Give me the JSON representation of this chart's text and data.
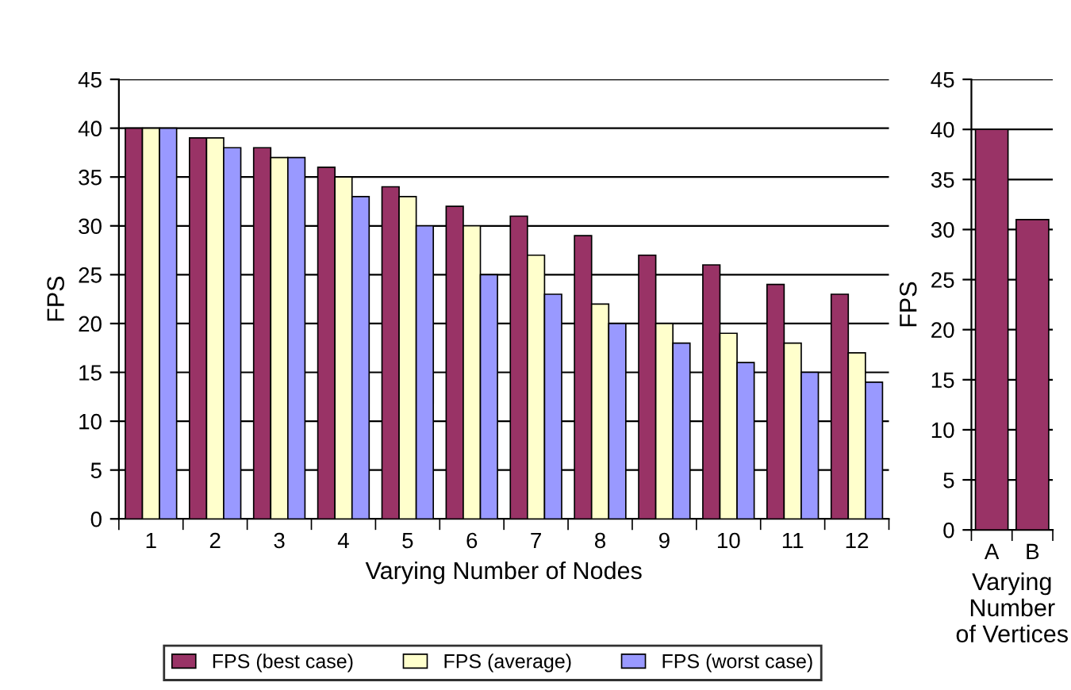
{
  "chart_data": [
    {
      "type": "bar",
      "categories": [
        "1",
        "2",
        "3",
        "4",
        "5",
        "6",
        "7",
        "8",
        "9",
        "10",
        "11",
        "12"
      ],
      "xlabel": "Varying Number of Nodes",
      "ylabel": "FPS",
      "ylim": [
        0,
        45
      ],
      "yticks": [
        0,
        5,
        10,
        15,
        20,
        25,
        30,
        35,
        40,
        45
      ],
      "grid": "y",
      "legend": "bottom",
      "series": [
        {
          "name": "FPS (best case)",
          "color": "#993366",
          "values": [
            40,
            39,
            38,
            36,
            34,
            32,
            31,
            29,
            27,
            26,
            24,
            23
          ]
        },
        {
          "name": "FPS (average)",
          "color": "#ffffcc",
          "values": [
            40,
            39,
            37,
            35,
            33,
            30,
            27,
            22,
            20,
            19,
            18,
            17
          ]
        },
        {
          "name": "FPS (worst case)",
          "color": "#9999ff",
          "values": [
            40,
            38,
            37,
            33,
            30,
            25,
            23,
            20,
            18,
            16,
            15,
            14
          ]
        }
      ]
    },
    {
      "type": "bar",
      "categories": [
        "A",
        "B"
      ],
      "xlabel": "Varying\nNumber\nof Vertices",
      "ylabel": "FPS",
      "ylim": [
        0,
        45
      ],
      "yticks": [
        0,
        5,
        10,
        15,
        20,
        25,
        30,
        35,
        40,
        45
      ],
      "grid": "y",
      "series": [
        {
          "color": "#993366",
          "values": [
            40,
            31
          ]
        }
      ]
    }
  ]
}
